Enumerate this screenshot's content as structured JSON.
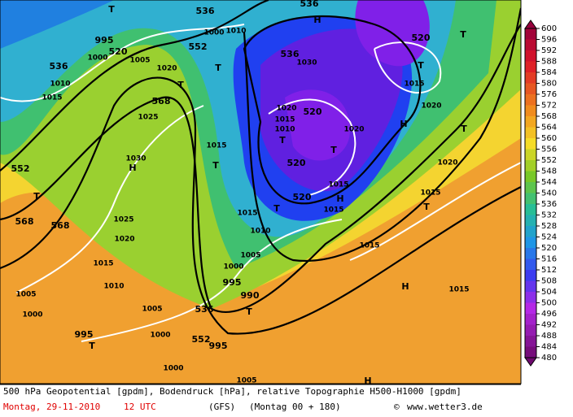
{
  "map": {
    "labels": [
      "T",
      "995",
      "520",
      "1000",
      "536",
      "1005",
      "552",
      "1020",
      "T",
      "1010",
      "1015",
      "568",
      "1025",
      "536",
      "1000",
      "1010",
      "T",
      "1015",
      "T",
      "1030",
      "H",
      "552",
      "T",
      "568",
      "568",
      "1025",
      "1020",
      "1015",
      "1010",
      "1005",
      "1000",
      "1005",
      "536",
      "995",
      "1000",
      "1005",
      "990",
      "T",
      "995",
      "T",
      "1000",
      "552",
      "995",
      "1000",
      "1005",
      "1010",
      "1015",
      "T",
      "520",
      "520",
      "1015",
      "H",
      "1015",
      "1020",
      "520",
      "1015",
      "1010",
      "T",
      "T",
      "1020",
      "536",
      "1030",
      "H",
      "536",
      "520",
      "T",
      "1015",
      "1020",
      "H",
      "T",
      "T",
      "1020",
      "1015",
      "T",
      "1015",
      "H",
      "1015",
      "H"
    ]
  },
  "legend": {
    "ticks": [
      600,
      596,
      592,
      588,
      584,
      580,
      576,
      572,
      568,
      564,
      560,
      556,
      552,
      548,
      544,
      540,
      536,
      532,
      528,
      524,
      520,
      516,
      512,
      508,
      504,
      500,
      496,
      492,
      488,
      484,
      480
    ]
  },
  "footer": {
    "description": "500 hPa Geopotential [gpdm], Bodendruck [hPa], relative Topographie H500-H1000 [gpdm]",
    "date": "Montag, 29-11-2010",
    "time": "12 UTC",
    "model": "(GFS)",
    "run": "(Montag 00 + 180)",
    "copyright": "©",
    "site": "www.wetter3.de"
  }
}
